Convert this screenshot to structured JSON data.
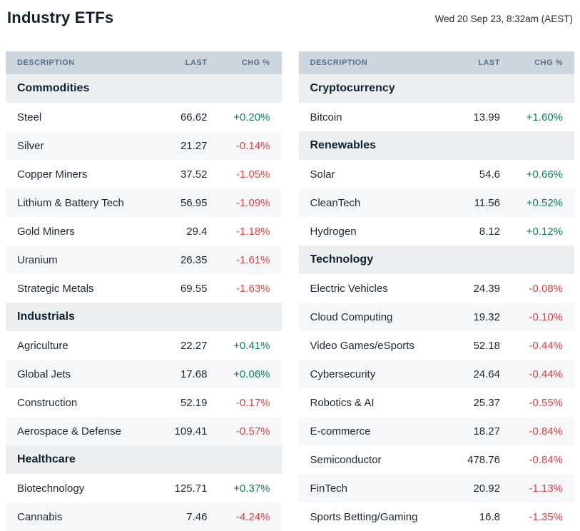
{
  "header": {
    "title": "Industry ETFs",
    "timestamp": "Wed 20 Sep 23, 8:32am (AEST)"
  },
  "columns": [
    "DESCRIPTION",
    "LAST",
    "CHG %"
  ],
  "colors": {
    "positive": "#0b7f62",
    "negative": "#e03e3f",
    "column_header_bg": "#cdd6dd",
    "column_header_text": "#59708a",
    "section_row_bg": "#eceff1",
    "alt_row_bg": "#f6f7f8",
    "title_text": "#13202d"
  },
  "tables": {
    "left": {
      "sections": [
        {
          "label": "Commodities",
          "rows": [
            {
              "description": "Steel",
              "last": "66.62",
              "chg": "+0.20%"
            },
            {
              "description": "Silver",
              "last": "21.27",
              "chg": "-0.14%"
            },
            {
              "description": "Copper Miners",
              "last": "37.52",
              "chg": "-1.05%"
            },
            {
              "description": "Lithium & Battery Tech",
              "last": "56.95",
              "chg": "-1.09%"
            },
            {
              "description": "Gold Miners",
              "last": "29.4",
              "chg": "-1.18%"
            },
            {
              "description": "Uranium",
              "last": "26.35",
              "chg": "-1.61%"
            },
            {
              "description": "Strategic Metals",
              "last": "69.55",
              "chg": "-1.63%"
            }
          ]
        },
        {
          "label": "Industrials",
          "rows": [
            {
              "description": "Agriculture",
              "last": "22.27",
              "chg": "+0.41%"
            },
            {
              "description": "Global Jets",
              "last": "17.68",
              "chg": "+0.06%"
            },
            {
              "description": "Construction",
              "last": "52.19",
              "chg": "-0.17%"
            },
            {
              "description": "Aerospace & Defense",
              "last": "109.41",
              "chg": "-0.57%"
            }
          ]
        },
        {
          "label": "Healthcare",
          "rows": [
            {
              "description": "Biotechnology",
              "last": "125.71",
              "chg": "+0.37%"
            },
            {
              "description": "Cannabis",
              "last": "7.46",
              "chg": "-4.24%"
            }
          ]
        }
      ]
    },
    "right": {
      "sections": [
        {
          "label": "Cryptocurrency",
          "rows": [
            {
              "description": "Bitcoin",
              "last": "13.99",
              "chg": "+1.60%"
            }
          ]
        },
        {
          "label": "Renewables",
          "rows": [
            {
              "description": "Solar",
              "last": "54.6",
              "chg": "+0.66%"
            },
            {
              "description": "CleanTech",
              "last": "11.56",
              "chg": "+0.52%"
            },
            {
              "description": "Hydrogen",
              "last": "8.12",
              "chg": "+0.12%"
            }
          ]
        },
        {
          "label": "Technology",
          "rows": [
            {
              "description": "Electric Vehicles",
              "last": "24.39",
              "chg": "-0.08%"
            },
            {
              "description": "Cloud Computing",
              "last": "19.32",
              "chg": "-0.10%"
            },
            {
              "description": "Video Games/eSports",
              "last": "52.18",
              "chg": "-0.44%"
            },
            {
              "description": "Cybersecurity",
              "last": "24.64",
              "chg": "-0.44%"
            },
            {
              "description": "Robotics & AI",
              "last": "25.37",
              "chg": "-0.55%"
            },
            {
              "description": "E-commerce",
              "last": "18.27",
              "chg": "-0.84%"
            },
            {
              "description": "Semiconductor",
              "last": "478.76",
              "chg": "-0.84%"
            },
            {
              "description": "FinTech",
              "last": "20.92",
              "chg": "-1.13%"
            },
            {
              "description": "Sports Betting/Gaming",
              "last": "16.8",
              "chg": "-1.35%"
            }
          ]
        }
      ]
    }
  }
}
